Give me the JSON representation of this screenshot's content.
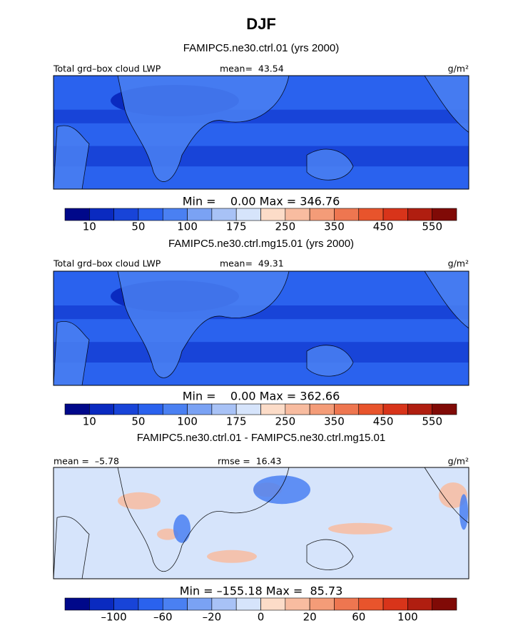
{
  "title": "DJF",
  "panels": [
    {
      "title": "FAMIPC5.ne30.ctrl.01 (yrs 2000)",
      "left_label": "Total grd–box cloud LWP",
      "stat_label": "mean=  43.54",
      "units": "g/m²",
      "min_max": "Min =    0.00 Max = 346.76",
      "colorbar_labels": [
        "10",
        "50",
        "100",
        "175",
        "250",
        "350",
        "450",
        "550"
      ]
    },
    {
      "title": "FAMIPC5.ne30.ctrl.mg15.01 (yrs 2000)",
      "left_label": "Total grd–box cloud LWP",
      "stat_label": "mean=  49.31",
      "units": "g/m²",
      "min_max": "Min =    0.00 Max = 362.66",
      "colorbar_labels": [
        "10",
        "50",
        "100",
        "175",
        "250",
        "350",
        "450",
        "550"
      ]
    },
    {
      "title": "FAMIPC5.ne30.ctrl.01 - FAMIPC5.ne30.ctrl.mg15.01",
      "left_label": "mean =  –5.78",
      "stat_label": "rmse =  16.43",
      "units": "g/m²",
      "min_max": "Min = –155.18 Max =  85.73",
      "colorbar_labels": [
        "–100",
        "–60",
        "–20",
        "0",
        "20",
        "60",
        "100"
      ]
    }
  ]
}
